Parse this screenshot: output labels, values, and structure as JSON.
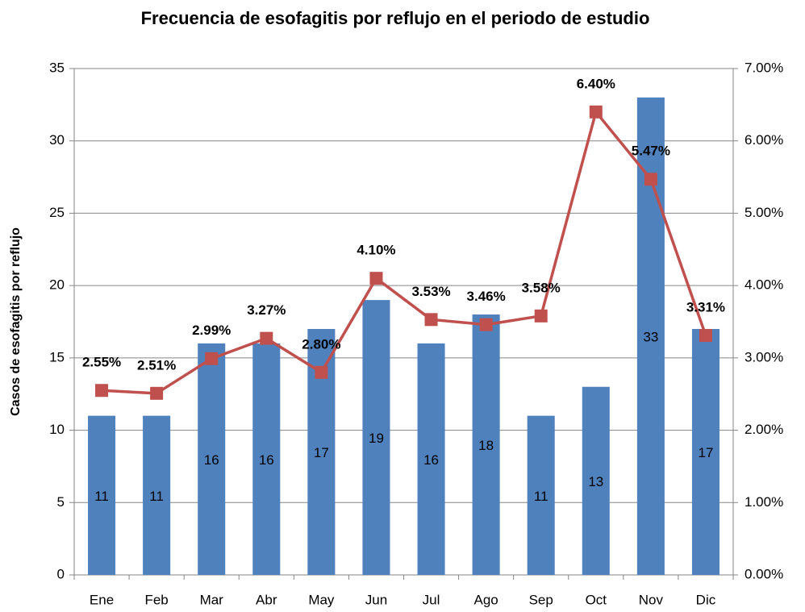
{
  "chart_data": {
    "type": "bar",
    "title": "Frecuencia de esofagitis por reflujo en el periodo de estudio",
    "ylabel": "Casos de esofagitis por reflujo",
    "categories": [
      "Ene",
      "Feb",
      "Mar",
      "Abr",
      "May",
      "Jun",
      "Jul",
      "Ago",
      "Sep",
      "Oct",
      "Nov",
      "Dic"
    ],
    "series": [
      {
        "type": "bar",
        "color": "#4f81bd",
        "values": [
          11,
          11,
          16,
          16,
          17,
          19,
          16,
          18,
          11,
          13,
          33,
          17
        ]
      },
      {
        "type": "line",
        "axis": "y2",
        "color": "#c0504d",
        "values": [
          2.55,
          2.51,
          2.99,
          3.27,
          2.8,
          4.1,
          3.53,
          3.46,
          3.58,
          6.4,
          5.47,
          3.31
        ],
        "value_labels": [
          "2.55%",
          "2.51%",
          "2.99%",
          "3.27%",
          "2.80%",
          "4.10%",
          "3.53%",
          "3.46%",
          "3.58%",
          "6.40%",
          "5.47%",
          "3.31%"
        ]
      }
    ],
    "ylim": [
      0,
      35
    ],
    "yticks": [
      0,
      5,
      10,
      15,
      20,
      25,
      30,
      35
    ],
    "y2lim": [
      0,
      7
    ],
    "y2ticks": [
      {
        "value": 0,
        "label": "0.00%"
      },
      {
        "value": 1,
        "label": "1.00%"
      },
      {
        "value": 2,
        "label": "2.00%"
      },
      {
        "value": 3,
        "label": "3.00%"
      },
      {
        "value": 4,
        "label": "4.00%"
      },
      {
        "value": 5,
        "label": "5.00%"
      },
      {
        "value": 6,
        "label": "6.00%"
      },
      {
        "value": 7,
        "label": "7.00%"
      }
    ],
    "grid": true
  }
}
